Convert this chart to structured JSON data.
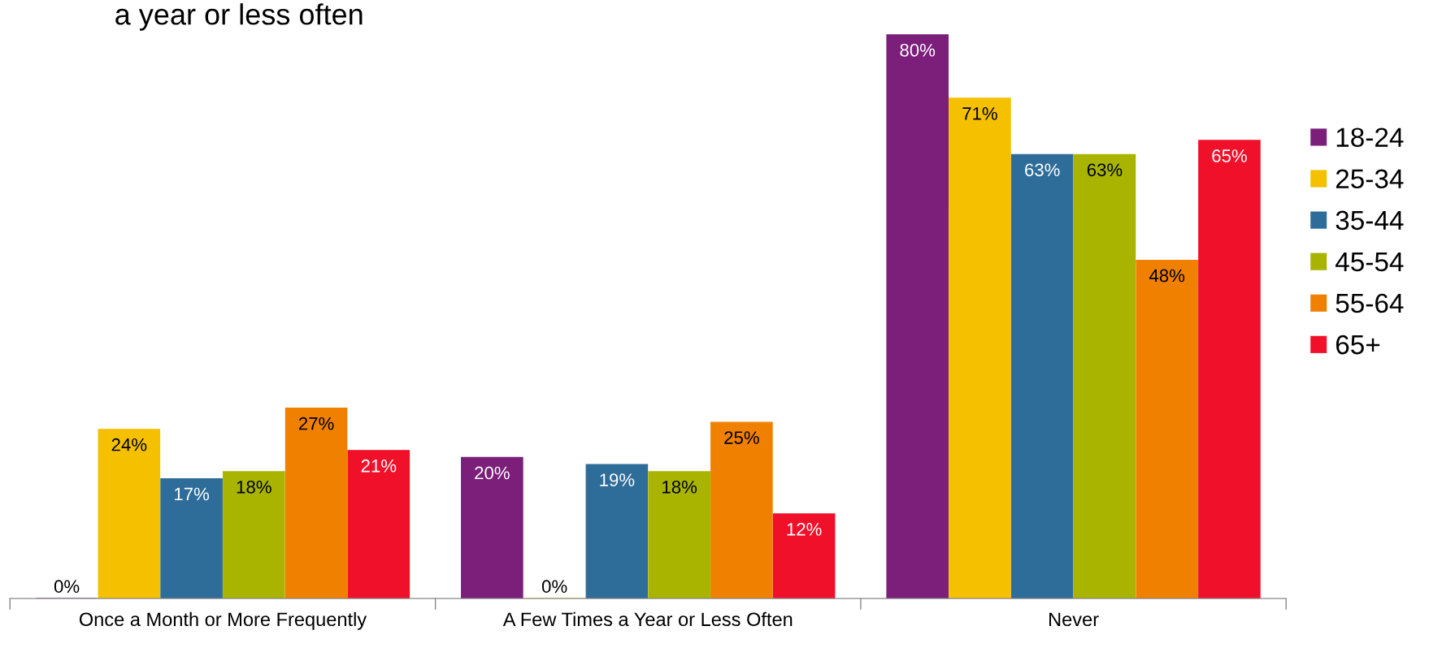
{
  "chart_data": {
    "type": "bar",
    "title": "a year or less often",
    "categories": [
      "Once a Month or More Frequently",
      "A Few Times a Year or Less Often",
      "Never"
    ],
    "series": [
      {
        "name": "18-24",
        "color": "#7b1f7a",
        "values": [
          0,
          20,
          80
        ],
        "value_labels": [
          "0%",
          "20%",
          "80%"
        ]
      },
      {
        "name": "25-34",
        "color": "#f5c000",
        "values": [
          24,
          0,
          71
        ],
        "value_labels": [
          "24%",
          "0%",
          "71%"
        ]
      },
      {
        "name": "35-44",
        "color": "#2e6d99",
        "values": [
          17,
          19,
          63
        ],
        "value_labels": [
          "17%",
          "19%",
          "63%"
        ]
      },
      {
        "name": "45-54",
        "color": "#a8b400",
        "values": [
          18,
          18,
          63
        ],
        "value_labels": [
          "18%",
          "18%",
          "63%"
        ]
      },
      {
        "name": "55-64",
        "color": "#f08000",
        "values": [
          27,
          25,
          48
        ],
        "value_labels": [
          "27%",
          "25%",
          "48%"
        ]
      },
      {
        "name": "65+",
        "color": "#f0102a",
        "values": [
          21,
          12,
          65
        ],
        "value_labels": [
          "21%",
          "12%",
          "65%"
        ]
      }
    ],
    "legend": "right",
    "tick_labels": "x",
    "grid": false
  }
}
